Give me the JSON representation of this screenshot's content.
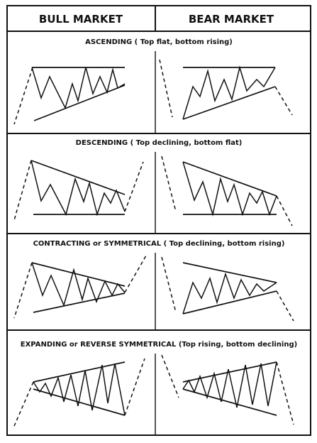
{
  "columns": [
    "BULL MARKET",
    "BEAR MARKET"
  ],
  "sections": [
    {
      "title": "ASCENDING ( Top flat, bottom rising)"
    },
    {
      "title": "DESCENDING ( Top declining,  bottom  flat)"
    },
    {
      "title": "CONTRACTING or SYMMETRICAL  ( Top declining,  bottom rising)"
    },
    {
      "title": "EXPANDING or REVERSE SYMMETRICAL (Top rising, bottom declining)"
    }
  ]
}
